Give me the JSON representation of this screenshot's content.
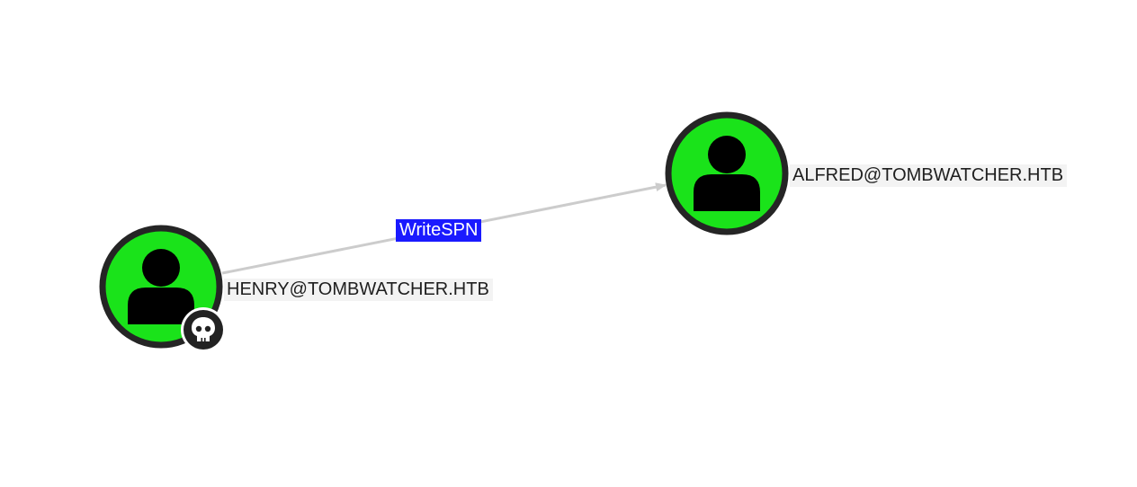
{
  "colors": {
    "node_fill": "#1ae31a",
    "node_ring": "#252525",
    "edge_line": "#cccccc",
    "edge_label_bg": "#1a1aff",
    "badge_fill": "#222222"
  },
  "nodes": [
    {
      "id": "henry",
      "label": "HENRY@TOMBWATCHER.HTB",
      "type": "user",
      "icon": "user-icon",
      "owned": true,
      "badge_icon": "skull-icon"
    },
    {
      "id": "alfred",
      "label": "ALFRED@TOMBWATCHER.HTB",
      "type": "user",
      "icon": "user-icon",
      "owned": false
    }
  ],
  "edges": [
    {
      "from": "henry",
      "to": "alfred",
      "label": "WriteSPN"
    }
  ]
}
